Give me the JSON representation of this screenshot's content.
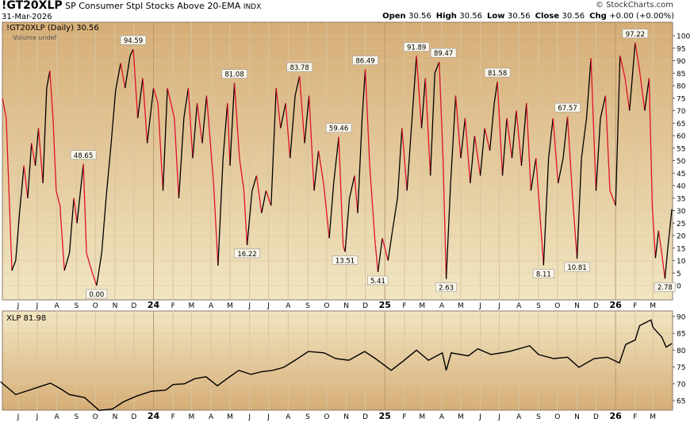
{
  "header": {
    "symbol": "!GT20XLP",
    "description": "SP Consumer Stpl Stocks Above 20-EMA",
    "exchange": "INDX",
    "date": "31-Mar-2026",
    "copyright": "© StockCharts.com",
    "ohlc": [
      {
        "label": "Open",
        "value": "30.56"
      },
      {
        "label": "High",
        "value": "30.56"
      },
      {
        "label": "Low",
        "value": "30.56"
      },
      {
        "label": "Close",
        "value": "30.56"
      },
      {
        "label": "Chg",
        "value": "+0.00 (+0.00%)"
      }
    ]
  },
  "colors": {
    "up": "#000000",
    "down": "#e0102a",
    "panel_dark": "#d6ad76",
    "panel_light": "#f1e6c2"
  },
  "chart_data": [
    {
      "type": "line",
      "legend": "!GT20XLP (Daily) 30.56",
      "sublegend": "Volume undef",
      "ylim": [
        0,
        100
      ],
      "yticks": [
        0,
        5,
        10,
        15,
        20,
        25,
        30,
        35,
        40,
        45,
        50,
        55,
        60,
        65,
        70,
        75,
        80,
        85,
        90,
        95,
        100
      ],
      "grid": true,
      "points": [
        [
          "2023-05-07",
          75
        ],
        [
          "2023-05-13",
          67
        ],
        [
          "2023-05-22",
          6
        ],
        [
          "2023-05-28",
          10
        ],
        [
          "2023-06-03",
          29
        ],
        [
          "2023-06-10",
          48
        ],
        [
          "2023-06-16",
          35
        ],
        [
          "2023-06-22",
          57
        ],
        [
          "2023-06-28",
          48
        ],
        [
          "2023-07-03",
          63
        ],
        [
          "2023-07-10",
          41
        ],
        [
          "2023-07-16",
          79
        ],
        [
          "2023-07-21",
          86
        ],
        [
          "2023-07-26",
          67
        ],
        [
          "2023-07-31",
          38
        ],
        [
          "2023-08-06",
          32
        ],
        [
          "2023-08-13",
          6
        ],
        [
          "2023-08-21",
          13
        ],
        [
          "2023-08-28",
          35
        ],
        [
          "2023-09-02",
          25
        ],
        [
          "2023-09-12",
          48.65
        ],
        [
          "2023-09-17",
          13
        ],
        [
          "2023-09-25",
          6
        ],
        [
          "2023-10-03",
          0
        ],
        [
          "2023-10-11",
          13
        ],
        [
          "2023-10-18",
          35
        ],
        [
          "2023-10-26",
          57
        ],
        [
          "2023-11-02",
          78
        ],
        [
          "2023-11-10",
          89
        ],
        [
          "2023-11-17",
          79
        ],
        [
          "2023-11-25",
          92
        ],
        [
          "2023-11-30",
          94.59
        ],
        [
          "2023-12-07",
          67
        ],
        [
          "2023-12-15",
          83
        ],
        [
          "2023-12-22",
          57
        ],
        [
          "2024-01-01",
          79
        ],
        [
          "2024-01-08",
          73
        ],
        [
          "2024-01-16",
          38
        ],
        [
          "2024-01-23",
          79
        ],
        [
          "2024-02-03",
          67
        ],
        [
          "2024-02-10",
          35
        ],
        [
          "2024-02-18",
          67
        ],
        [
          "2024-02-25",
          79
        ],
        [
          "2024-03-03",
          51
        ],
        [
          "2024-03-10",
          73
        ],
        [
          "2024-03-18",
          57
        ],
        [
          "2024-03-25",
          76
        ],
        [
          "2024-04-05",
          41
        ],
        [
          "2024-04-12",
          8
        ],
        [
          "2024-04-20",
          51
        ],
        [
          "2024-04-27",
          73
        ],
        [
          "2024-05-01",
          48
        ],
        [
          "2024-05-08",
          81.08
        ],
        [
          "2024-05-16",
          51
        ],
        [
          "2024-05-23",
          38
        ],
        [
          "2024-05-28",
          16.22
        ],
        [
          "2024-06-05",
          38
        ],
        [
          "2024-06-12",
          44
        ],
        [
          "2024-06-20",
          29
        ],
        [
          "2024-06-27",
          38
        ],
        [
          "2024-07-05",
          32
        ],
        [
          "2024-07-13",
          79
        ],
        [
          "2024-07-20",
          63
        ],
        [
          "2024-07-28",
          73
        ],
        [
          "2024-08-04",
          51
        ],
        [
          "2024-08-12",
          76
        ],
        [
          "2024-08-19",
          83.78
        ],
        [
          "2024-08-27",
          57
        ],
        [
          "2024-09-03",
          76
        ],
        [
          "2024-09-11",
          38
        ],
        [
          "2024-09-18",
          54
        ],
        [
          "2024-09-26",
          41
        ],
        [
          "2024-10-05",
          19
        ],
        [
          "2024-10-12",
          41
        ],
        [
          "2024-10-20",
          59.46
        ],
        [
          "2024-10-27",
          16
        ],
        [
          "2024-10-30",
          13.51
        ],
        [
          "2024-11-06",
          35
        ],
        [
          "2024-11-14",
          44
        ],
        [
          "2024-11-19",
          29
        ],
        [
          "2024-11-26",
          67
        ],
        [
          "2024-12-01",
          86.49
        ],
        [
          "2024-12-08",
          48
        ],
        [
          "2024-12-16",
          19
        ],
        [
          "2024-12-21",
          5.41
        ],
        [
          "2024-12-28",
          19
        ],
        [
          "2025-01-06",
          10
        ],
        [
          "2025-01-13",
          22
        ],
        [
          "2025-01-21",
          35
        ],
        [
          "2025-01-28",
          63
        ],
        [
          "2025-02-05",
          38
        ],
        [
          "2025-02-13",
          67
        ],
        [
          "2025-02-20",
          91.89
        ],
        [
          "2025-02-28",
          63
        ],
        [
          "2025-03-06",
          83
        ],
        [
          "2025-03-14",
          44
        ],
        [
          "2025-03-21",
          85
        ],
        [
          "2025-03-28",
          89.47
        ],
        [
          "2025-04-03",
          51
        ],
        [
          "2025-04-08",
          2.63
        ],
        [
          "2025-04-15",
          41
        ],
        [
          "2025-04-23",
          76
        ],
        [
          "2025-05-01",
          51
        ],
        [
          "2025-05-08",
          67
        ],
        [
          "2025-05-16",
          41
        ],
        [
          "2025-05-23",
          60
        ],
        [
          "2025-06-01",
          44
        ],
        [
          "2025-06-08",
          63
        ],
        [
          "2025-06-16",
          54
        ],
        [
          "2025-06-23",
          73
        ],
        [
          "2025-06-28",
          81.58
        ],
        [
          "2025-07-06",
          44
        ],
        [
          "2025-07-13",
          67
        ],
        [
          "2025-07-21",
          51
        ],
        [
          "2025-07-28",
          70
        ],
        [
          "2025-08-05",
          48
        ],
        [
          "2025-08-13",
          73
        ],
        [
          "2025-08-20",
          38
        ],
        [
          "2025-08-28",
          51
        ],
        [
          "2025-09-09",
          8.11
        ],
        [
          "2025-09-17",
          51
        ],
        [
          "2025-09-24",
          67
        ],
        [
          "2025-10-02",
          41
        ],
        [
          "2025-10-10",
          51
        ],
        [
          "2025-10-17",
          67.57
        ],
        [
          "2025-10-25",
          35
        ],
        [
          "2025-11-01",
          10.81
        ],
        [
          "2025-11-08",
          51
        ],
        [
          "2025-11-16",
          67
        ],
        [
          "2025-11-23",
          91
        ],
        [
          "2025-12-01",
          38
        ],
        [
          "2025-12-08",
          67
        ],
        [
          "2025-12-16",
          76
        ],
        [
          "2025-12-23",
          38
        ],
        [
          "2026-01-01",
          32
        ],
        [
          "2026-01-08",
          92
        ],
        [
          "2026-01-16",
          83
        ],
        [
          "2026-01-23",
          70
        ],
        [
          "2026-02-01",
          97.22
        ],
        [
          "2026-02-08",
          86
        ],
        [
          "2026-02-16",
          70
        ],
        [
          "2026-02-23",
          83
        ],
        [
          "2026-02-28",
          32
        ],
        [
          "2026-03-05",
          11
        ],
        [
          "2026-03-10",
          22
        ],
        [
          "2026-03-15",
          13
        ],
        [
          "2026-03-20",
          2.78
        ],
        [
          "2026-03-25",
          16
        ],
        [
          "2026-03-31",
          30.56
        ]
      ],
      "annotations": [
        {
          "date": "2023-09-12",
          "value": 48.65,
          "text": "48.65",
          "pos": "above"
        },
        {
          "date": "2023-10-03",
          "value": 0,
          "text": "0.00",
          "pos": "below"
        },
        {
          "date": "2023-11-30",
          "value": 94.59,
          "text": "94.59",
          "pos": "above"
        },
        {
          "date": "2024-05-08",
          "value": 81.08,
          "text": "81.08",
          "pos": "above"
        },
        {
          "date": "2024-05-28",
          "value": 16.22,
          "text": "16.22",
          "pos": "below"
        },
        {
          "date": "2024-08-19",
          "value": 83.78,
          "text": "83.78",
          "pos": "above"
        },
        {
          "date": "2024-10-20",
          "value": 59.46,
          "text": "59.46",
          "pos": "above"
        },
        {
          "date": "2024-10-30",
          "value": 13.51,
          "text": "13.51",
          "pos": "below"
        },
        {
          "date": "2024-12-01",
          "value": 86.49,
          "text": "86.49",
          "pos": "above"
        },
        {
          "date": "2024-12-21",
          "value": 5.41,
          "text": "5.41",
          "pos": "below"
        },
        {
          "date": "2025-02-20",
          "value": 91.89,
          "text": "91.89",
          "pos": "above"
        },
        {
          "date": "2025-03-28",
          "value": 89.47,
          "text": "89.47",
          "pos": "above"
        },
        {
          "date": "2025-04-08",
          "value": 2.63,
          "text": "2.63",
          "pos": "below"
        },
        {
          "date": "2025-06-28",
          "value": 81.58,
          "text": "81.58",
          "pos": "above"
        },
        {
          "date": "2025-09-09",
          "value": 8.11,
          "text": "8.11",
          "pos": "below"
        },
        {
          "date": "2025-10-17",
          "value": 67.57,
          "text": "67.57",
          "pos": "above"
        },
        {
          "date": "2025-11-01",
          "value": 10.81,
          "text": "10.81",
          "pos": "below"
        },
        {
          "date": "2026-02-01",
          "value": 97.22,
          "text": "97.22",
          "pos": "above"
        },
        {
          "date": "2026-03-20",
          "value": 2.78,
          "text": "2.78",
          "pos": "below"
        }
      ]
    },
    {
      "type": "line",
      "legend": "XLP 81.98",
      "ylim": [
        60,
        91
      ],
      "yticks": [
        65,
        70,
        75,
        80,
        85,
        90
      ],
      "grid": true,
      "points": [
        [
          "2023-05-04",
          70.6
        ],
        [
          "2023-05-28",
          66.8
        ],
        [
          "2023-06-18",
          68.1
        ],
        [
          "2023-07-01",
          68.9
        ],
        [
          "2023-07-22",
          70.2
        ],
        [
          "2023-08-07",
          68.5
        ],
        [
          "2023-08-21",
          66.8
        ],
        [
          "2023-09-14",
          65.9
        ],
        [
          "2023-10-07",
          62.1
        ],
        [
          "2023-10-28",
          62.5
        ],
        [
          "2023-11-15",
          64.7
        ],
        [
          "2023-12-06",
          66.4
        ],
        [
          "2023-12-29",
          67.8
        ],
        [
          "2024-01-20",
          68.1
        ],
        [
          "2024-02-01",
          69.8
        ],
        [
          "2024-02-19",
          70.0
        ],
        [
          "2024-03-06",
          71.5
        ],
        [
          "2024-03-24",
          72.1
        ],
        [
          "2024-04-11",
          69.4
        ],
        [
          "2024-04-29",
          71.9
        ],
        [
          "2024-05-15",
          74.0
        ],
        [
          "2024-06-03",
          72.8
        ],
        [
          "2024-06-20",
          73.6
        ],
        [
          "2024-07-08",
          74.0
        ],
        [
          "2024-07-25",
          74.9
        ],
        [
          "2024-08-12",
          77.0
        ],
        [
          "2024-09-02",
          79.6
        ],
        [
          "2024-09-27",
          79.2
        ],
        [
          "2024-10-15",
          77.5
        ],
        [
          "2024-11-05",
          77.0
        ],
        [
          "2024-11-30",
          79.6
        ],
        [
          "2024-12-17",
          77.5
        ],
        [
          "2025-01-11",
          74.0
        ],
        [
          "2025-01-29",
          76.6
        ],
        [
          "2025-02-20",
          80.0
        ],
        [
          "2025-03-11",
          77.0
        ],
        [
          "2025-04-02",
          79.2
        ],
        [
          "2025-04-08",
          74.0
        ],
        [
          "2025-04-16",
          79.2
        ],
        [
          "2025-05-13",
          78.3
        ],
        [
          "2025-05-28",
          80.4
        ],
        [
          "2025-06-18",
          78.7
        ],
        [
          "2025-07-17",
          79.6
        ],
        [
          "2025-08-18",
          81.3
        ],
        [
          "2025-09-01",
          78.7
        ],
        [
          "2025-09-25",
          77.5
        ],
        [
          "2025-10-17",
          77.9
        ],
        [
          "2025-11-04",
          74.9
        ],
        [
          "2025-11-28",
          77.5
        ],
        [
          "2025-12-19",
          77.9
        ],
        [
          "2026-01-07",
          76.2
        ],
        [
          "2026-01-17",
          81.7
        ],
        [
          "2026-02-01",
          83.0
        ],
        [
          "2026-02-08",
          87.3
        ],
        [
          "2026-02-26",
          89.0
        ],
        [
          "2026-03-01",
          86.8
        ],
        [
          "2026-03-15",
          83.9
        ],
        [
          "2026-03-22",
          80.9
        ],
        [
          "2026-03-31",
          81.98
        ]
      ]
    }
  ],
  "xaxis": {
    "ticks": [
      [
        "2023-06-01",
        "J",
        false
      ],
      [
        "2023-07-01",
        "J",
        false
      ],
      [
        "2023-08-01",
        "A",
        false
      ],
      [
        "2023-09-01",
        "S",
        false
      ],
      [
        "2023-10-01",
        "O",
        false
      ],
      [
        "2023-11-01",
        "N",
        false
      ],
      [
        "2023-12-01",
        "D",
        false
      ],
      [
        "2024-01-01",
        "24",
        true
      ],
      [
        "2024-02-01",
        "F",
        false
      ],
      [
        "2024-03-01",
        "M",
        false
      ],
      [
        "2024-04-01",
        "A",
        false
      ],
      [
        "2024-05-01",
        "M",
        false
      ],
      [
        "2024-06-01",
        "J",
        false
      ],
      [
        "2024-07-01",
        "J",
        false
      ],
      [
        "2024-08-01",
        "A",
        false
      ],
      [
        "2024-09-01",
        "S",
        false
      ],
      [
        "2024-10-01",
        "O",
        false
      ],
      [
        "2024-11-01",
        "N",
        false
      ],
      [
        "2024-12-01",
        "D",
        false
      ],
      [
        "2025-01-01",
        "25",
        true
      ],
      [
        "2025-02-01",
        "F",
        false
      ],
      [
        "2025-03-01",
        "M",
        false
      ],
      [
        "2025-04-01",
        "A",
        false
      ],
      [
        "2025-05-01",
        "M",
        false
      ],
      [
        "2025-06-01",
        "J",
        false
      ],
      [
        "2025-07-01",
        "J",
        false
      ],
      [
        "2025-08-01",
        "A",
        false
      ],
      [
        "2025-09-01",
        "S",
        false
      ],
      [
        "2025-10-01",
        "O",
        false
      ],
      [
        "2025-11-01",
        "N",
        false
      ],
      [
        "2025-12-01",
        "D",
        false
      ],
      [
        "2026-01-01",
        "26",
        true
      ],
      [
        "2026-02-01",
        "F",
        false
      ],
      [
        "2026-03-01",
        "M",
        false
      ]
    ]
  }
}
